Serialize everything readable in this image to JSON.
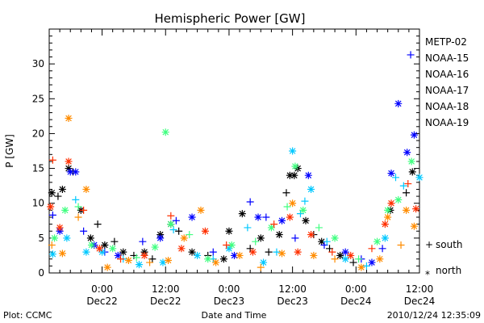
{
  "chart_data": {
    "type": "scatter",
    "title": "Hemispheric Power [GW]",
    "xlabel": "Date and Time",
    "ylabel": "P [GW]",
    "ylim": [
      0,
      35
    ],
    "yticks": [
      0,
      5,
      10,
      15,
      20,
      25,
      30
    ],
    "xlim": [
      "2010-12-21 14:00",
      "2010-12-24 12:00"
    ],
    "xticks": [
      {
        "x": "2010-12-22 00:00",
        "time": "0:00",
        "date": "Dec22"
      },
      {
        "x": "2010-12-22 12:00",
        "time": "12:00",
        "date": "Dec22"
      },
      {
        "x": "2010-12-23 00:00",
        "time": "0:00",
        "date": "Dec23"
      },
      {
        "x": "2010-12-23 12:00",
        "time": "12:00",
        "date": "Dec23"
      },
      {
        "x": "2010-12-24 00:00",
        "time": "0:00",
        "date": "Dec24"
      },
      {
        "x": "2010-12-24 12:00",
        "time": "12:00",
        "date": "Dec24"
      }
    ],
    "legend_position": "right",
    "marker_legend": [
      {
        "symbol": "+",
        "label": "south"
      },
      {
        "symbol": "*",
        "label": "north"
      }
    ],
    "footer_left": "Plot: CCMC",
    "footer_right": "2010/12/24 12:35:09",
    "series": [
      {
        "name": "METP-02",
        "color": "#000000",
        "points": [
          {
            "x": "2010-12-21 14:30",
            "y": 11.5,
            "m": "*"
          },
          {
            "x": "2010-12-21 15:40",
            "y": 11,
            "m": "+"
          },
          {
            "x": "2010-12-21 16:30",
            "y": 12,
            "m": "*"
          },
          {
            "x": "2010-12-21 17:40",
            "y": 15,
            "m": "*"
          },
          {
            "x": "2010-12-21 18:30",
            "y": 14.5,
            "m": "+"
          },
          {
            "x": "2010-12-21 20:00",
            "y": 9,
            "m": "*"
          },
          {
            "x": "2010-12-21 21:50",
            "y": 5,
            "m": "*"
          },
          {
            "x": "2010-12-21 23:10",
            "y": 7,
            "m": "+"
          },
          {
            "x": "2010-12-22 00:30",
            "y": 4,
            "m": "*"
          },
          {
            "x": "2010-12-22 02:20",
            "y": 4.5,
            "m": "+"
          },
          {
            "x": "2010-12-22 04:00",
            "y": 3,
            "m": "*"
          },
          {
            "x": "2010-12-22 06:00",
            "y": 2.5,
            "m": "+"
          },
          {
            "x": "2010-12-22 08:00",
            "y": 3,
            "m": "*"
          },
          {
            "x": "2010-12-22 09:30",
            "y": 2,
            "m": "+"
          },
          {
            "x": "2010-12-22 11:00",
            "y": 5.5,
            "m": "*"
          },
          {
            "x": "2010-12-22 13:00",
            "y": 7,
            "m": "*"
          },
          {
            "x": "2010-12-22 14:30",
            "y": 6,
            "m": "+"
          },
          {
            "x": "2010-12-22 17:00",
            "y": 3,
            "m": "*"
          },
          {
            "x": "2010-12-22 20:00",
            "y": 2.5,
            "m": "+"
          },
          {
            "x": "2010-12-22 23:00",
            "y": 2,
            "m": "*"
          },
          {
            "x": "2010-12-23 00:00",
            "y": 6,
            "m": "*"
          },
          {
            "x": "2010-12-23 02:30",
            "y": 8.5,
            "m": "*"
          },
          {
            "x": "2010-12-23 04:00",
            "y": 3.5,
            "m": "+"
          },
          {
            "x": "2010-12-23 06:00",
            "y": 5,
            "m": "*"
          },
          {
            "x": "2010-12-23 07:30",
            "y": 3,
            "m": "+"
          },
          {
            "x": "2010-12-23 09:30",
            "y": 5.5,
            "m": "*"
          },
          {
            "x": "2010-12-23 10:50",
            "y": 11.5,
            "m": "+"
          },
          {
            "x": "2010-12-23 11:30",
            "y": 14,
            "m": "*"
          },
          {
            "x": "2010-12-23 12:20",
            "y": 14,
            "m": "*"
          },
          {
            "x": "2010-12-23 13:00",
            "y": 15,
            "m": "*"
          },
          {
            "x": "2010-12-23 14:30",
            "y": 7.5,
            "m": "*"
          },
          {
            "x": "2010-12-23 16:00",
            "y": 5.5,
            "m": "+"
          },
          {
            "x": "2010-12-23 17:30",
            "y": 4.5,
            "m": "*"
          },
          {
            "x": "2010-12-23 19:00",
            "y": 3.5,
            "m": "+"
          },
          {
            "x": "2010-12-23 21:00",
            "y": 2.5,
            "m": "*"
          },
          {
            "x": "2010-12-23 23:30",
            "y": 1.5,
            "m": "+"
          },
          {
            "x": "2010-12-24 06:30",
            "y": 9,
            "m": "*"
          },
          {
            "x": "2010-12-24 09:30",
            "y": 11.5,
            "m": "+"
          },
          {
            "x": "2010-12-24 10:40",
            "y": 14.5,
            "m": "*"
          }
        ]
      },
      {
        "name": "NOAA-15",
        "color": "#0000ff",
        "points": [
          {
            "x": "2010-12-21 14:40",
            "y": 8.3,
            "m": "+"
          },
          {
            "x": "2010-12-21 16:00",
            "y": 6,
            "m": "*"
          },
          {
            "x": "2010-12-21 18:00",
            "y": 14.5,
            "m": "*"
          },
          {
            "x": "2010-12-21 19:00",
            "y": 14.5,
            "m": "*"
          },
          {
            "x": "2010-12-21 20:30",
            "y": 6,
            "m": "+"
          },
          {
            "x": "2010-12-21 22:30",
            "y": 4,
            "m": "*"
          },
          {
            "x": "2010-12-22 00:30",
            "y": 3,
            "m": "+"
          },
          {
            "x": "2010-12-22 03:00",
            "y": 2.5,
            "m": "*"
          },
          {
            "x": "2010-12-22 07:40",
            "y": 4.5,
            "m": "+"
          },
          {
            "x": "2010-12-22 11:00",
            "y": 5,
            "m": "*"
          },
          {
            "x": "2010-12-22 14:00",
            "y": 7.5,
            "m": "+"
          },
          {
            "x": "2010-12-22 17:00",
            "y": 8,
            "m": "*"
          },
          {
            "x": "2010-12-22 21:00",
            "y": 3,
            "m": "+"
          },
          {
            "x": "2010-12-23 01:00",
            "y": 2.5,
            "m": "*"
          },
          {
            "x": "2010-12-23 04:00",
            "y": 10.2,
            "m": "+"
          },
          {
            "x": "2010-12-23 05:30",
            "y": 8,
            "m": "*"
          },
          {
            "x": "2010-12-23 07:00",
            "y": 8,
            "m": "+"
          },
          {
            "x": "2010-12-23 10:00",
            "y": 7.5,
            "m": "*"
          },
          {
            "x": "2010-12-23 12:30",
            "y": 5,
            "m": "+"
          },
          {
            "x": "2010-12-23 15:00",
            "y": 14,
            "m": "*"
          },
          {
            "x": "2010-12-23 18:00",
            "y": 4,
            "m": "+"
          },
          {
            "x": "2010-12-23 22:00",
            "y": 3,
            "m": "*"
          },
          {
            "x": "2010-12-24 01:00",
            "y": 2,
            "m": "+"
          },
          {
            "x": "2010-12-24 03:00",
            "y": 1.5,
            "m": "*"
          },
          {
            "x": "2010-12-24 05:00",
            "y": 3.5,
            "m": "+"
          },
          {
            "x": "2010-12-24 06:40",
            "y": 14.3,
            "m": "*"
          },
          {
            "x": "2010-12-24 08:00",
            "y": 24.3,
            "m": "*"
          },
          {
            "x": "2010-12-24 09:40",
            "y": 17.3,
            "m": "*"
          },
          {
            "x": "2010-12-24 10:20",
            "y": 31.3,
            "m": "+"
          },
          {
            "x": "2010-12-24 11:00",
            "y": 19.8,
            "m": "*"
          }
        ]
      },
      {
        "name": "NOAA-16",
        "color": "#00c8ff",
        "points": [
          {
            "x": "2010-12-21 14:40",
            "y": 2.7,
            "m": "*"
          },
          {
            "x": "2010-12-21 17:20",
            "y": 5,
            "m": "*"
          },
          {
            "x": "2010-12-21 19:00",
            "y": 10.5,
            "m": "+"
          },
          {
            "x": "2010-12-21 21:00",
            "y": 3,
            "m": "*"
          },
          {
            "x": "2010-12-22 00:00",
            "y": 3,
            "m": "*"
          },
          {
            "x": "2010-12-22 04:00",
            "y": 2,
            "m": "+"
          },
          {
            "x": "2010-12-22 07:00",
            "y": 1.2,
            "m": "*"
          },
          {
            "x": "2010-12-22 11:30",
            "y": 1.5,
            "m": "*"
          },
          {
            "x": "2010-12-22 13:30",
            "y": 6.2,
            "m": "+"
          },
          {
            "x": "2010-12-22 18:00",
            "y": 2.5,
            "m": "*"
          },
          {
            "x": "2010-12-22 21:00",
            "y": 2,
            "m": "+"
          },
          {
            "x": "2010-12-23 00:00",
            "y": 3.5,
            "m": "*"
          },
          {
            "x": "2010-12-23 03:30",
            "y": 6.5,
            "m": "+"
          },
          {
            "x": "2010-12-23 06:30",
            "y": 1.5,
            "m": "*"
          },
          {
            "x": "2010-12-23 09:00",
            "y": 3,
            "m": "+"
          },
          {
            "x": "2010-12-23 12:00",
            "y": 17.5,
            "m": "*"
          },
          {
            "x": "2010-12-23 13:30",
            "y": 8.5,
            "m": "+"
          },
          {
            "x": "2010-12-23 14:20",
            "y": 10.3,
            "m": "+"
          },
          {
            "x": "2010-12-23 15:30",
            "y": 12,
            "m": "*"
          },
          {
            "x": "2010-12-23 18:30",
            "y": 4.5,
            "m": "+"
          },
          {
            "x": "2010-12-23 22:00",
            "y": 2,
            "m": "*"
          },
          {
            "x": "2010-12-24 02:00",
            "y": 1,
            "m": "+"
          },
          {
            "x": "2010-12-24 05:30",
            "y": 5,
            "m": "*"
          },
          {
            "x": "2010-12-24 07:30",
            "y": 13.7,
            "m": "+"
          },
          {
            "x": "2010-12-24 09:00",
            "y": 12.5,
            "m": "+"
          },
          {
            "x": "2010-12-24 12:00",
            "y": 13.7,
            "m": "*"
          }
        ]
      },
      {
        "name": "NOAA-17",
        "color": "#40ff80",
        "points": [
          {
            "x": "2010-12-21 15:00",
            "y": 5,
            "m": "*"
          },
          {
            "x": "2010-12-21 17:00",
            "y": 9,
            "m": "*"
          },
          {
            "x": "2010-12-21 19:30",
            "y": 9.5,
            "m": "+"
          },
          {
            "x": "2010-12-21 22:00",
            "y": 4,
            "m": "*"
          },
          {
            "x": "2010-12-22 02:00",
            "y": 3.5,
            "m": "*"
          },
          {
            "x": "2010-12-22 06:30",
            "y": 2.2,
            "m": "+"
          },
          {
            "x": "2010-12-22 10:00",
            "y": 3.7,
            "m": "*"
          },
          {
            "x": "2010-12-22 12:00",
            "y": 20.2,
            "m": "*"
          },
          {
            "x": "2010-12-22 13:00",
            "y": 7,
            "m": "*"
          },
          {
            "x": "2010-12-22 16:30",
            "y": 5.5,
            "m": "+"
          },
          {
            "x": "2010-12-22 20:00",
            "y": 2,
            "m": "*"
          },
          {
            "x": "2010-12-23 00:30",
            "y": 4,
            "m": "*"
          },
          {
            "x": "2010-12-23 05:00",
            "y": 4.5,
            "m": "+"
          },
          {
            "x": "2010-12-23 08:00",
            "y": 6.5,
            "m": "*"
          },
          {
            "x": "2010-12-23 11:00",
            "y": 9.5,
            "m": "+"
          },
          {
            "x": "2010-12-23 12:30",
            "y": 15.3,
            "m": "*"
          },
          {
            "x": "2010-12-23 14:00",
            "y": 9,
            "m": "*"
          },
          {
            "x": "2010-12-23 17:00",
            "y": 6.5,
            "m": "+"
          },
          {
            "x": "2010-12-23 20:00",
            "y": 5,
            "m": "*"
          },
          {
            "x": "2010-12-24 00:30",
            "y": 2,
            "m": "+"
          },
          {
            "x": "2010-12-24 04:00",
            "y": 4.5,
            "m": "*"
          },
          {
            "x": "2010-12-24 06:00",
            "y": 9,
            "m": "*"
          },
          {
            "x": "2010-12-24 08:00",
            "y": 10.5,
            "m": "*"
          },
          {
            "x": "2010-12-24 10:30",
            "y": 16,
            "m": "*"
          }
        ]
      },
      {
        "name": "NOAA-18",
        "color": "#ff8c00",
        "points": [
          {
            "x": "2010-12-21 14:30",
            "y": 4,
            "m": "+"
          },
          {
            "x": "2010-12-21 16:30",
            "y": 2.8,
            "m": "*"
          },
          {
            "x": "2010-12-21 17:40",
            "y": 22.2,
            "m": "*"
          },
          {
            "x": "2010-12-21 19:30",
            "y": 8,
            "m": "+"
          },
          {
            "x": "2010-12-21 21:00",
            "y": 12,
            "m": "*"
          },
          {
            "x": "2010-12-22 01:00",
            "y": 0.8,
            "m": "*"
          },
          {
            "x": "2010-12-22 05:00",
            "y": 1.8,
            "m": "*"
          },
          {
            "x": "2010-12-22 09:00",
            "y": 1.5,
            "m": "+"
          },
          {
            "x": "2010-12-22 12:30",
            "y": 1.8,
            "m": "*"
          },
          {
            "x": "2010-12-22 15:30",
            "y": 5,
            "m": "*"
          },
          {
            "x": "2010-12-22 18:40",
            "y": 9,
            "m": "*"
          },
          {
            "x": "2010-12-22 21:30",
            "y": 1.5,
            "m": "*"
          },
          {
            "x": "2010-12-23 02:00",
            "y": 2.5,
            "m": "*"
          },
          {
            "x": "2010-12-23 06:00",
            "y": 0.8,
            "m": "+"
          },
          {
            "x": "2010-12-23 10:00",
            "y": 2.8,
            "m": "*"
          },
          {
            "x": "2010-12-23 12:00",
            "y": 10,
            "m": "*"
          },
          {
            "x": "2010-12-23 16:00",
            "y": 2.5,
            "m": "*"
          },
          {
            "x": "2010-12-23 20:00",
            "y": 2,
            "m": "+"
          },
          {
            "x": "2010-12-24 01:00",
            "y": 0.8,
            "m": "*"
          },
          {
            "x": "2010-12-24 04:30",
            "y": 2,
            "m": "*"
          },
          {
            "x": "2010-12-24 06:00",
            "y": 8,
            "m": "*"
          },
          {
            "x": "2010-12-24 08:30",
            "y": 4,
            "m": "+"
          },
          {
            "x": "2010-12-24 09:30",
            "y": 9,
            "m": "*"
          },
          {
            "x": "2010-12-24 11:00",
            "y": 6.7,
            "m": "*"
          }
        ]
      },
      {
        "name": "NOAA-19",
        "color": "#ff3000",
        "points": [
          {
            "x": "2010-12-21 14:15",
            "y": 9.5,
            "m": "*"
          },
          {
            "x": "2010-12-21 14:40",
            "y": 16.2,
            "m": "+"
          },
          {
            "x": "2010-12-21 16:00",
            "y": 6.5,
            "m": "*"
          },
          {
            "x": "2010-12-21 17:40",
            "y": 16,
            "m": "*"
          },
          {
            "x": "2010-12-21 20:30",
            "y": 9,
            "m": "+"
          },
          {
            "x": "2010-12-21 23:30",
            "y": 3.5,
            "m": "*"
          },
          {
            "x": "2010-12-22 03:30",
            "y": 2,
            "m": "+"
          },
          {
            "x": "2010-12-22 08:00",
            "y": 2.5,
            "m": "*"
          },
          {
            "x": "2010-12-22 13:00",
            "y": 8.2,
            "m": "+"
          },
          {
            "x": "2010-12-22 15:00",
            "y": 3.5,
            "m": "*"
          },
          {
            "x": "2010-12-22 19:30",
            "y": 6,
            "m": "*"
          },
          {
            "x": "2010-12-22 23:30",
            "y": 4,
            "m": "+"
          },
          {
            "x": "2010-12-23 04:30",
            "y": 3,
            "m": "*"
          },
          {
            "x": "2010-12-23 08:30",
            "y": 7,
            "m": "+"
          },
          {
            "x": "2010-12-23 11:30",
            "y": 8,
            "m": "*"
          },
          {
            "x": "2010-12-23 13:00",
            "y": 3,
            "m": "*"
          },
          {
            "x": "2010-12-23 15:30",
            "y": 5.5,
            "m": "*"
          },
          {
            "x": "2010-12-23 19:30",
            "y": 3,
            "m": "+"
          },
          {
            "x": "2010-12-23 23:00",
            "y": 2.5,
            "m": "*"
          },
          {
            "x": "2010-12-24 03:00",
            "y": 3.5,
            "m": "+"
          },
          {
            "x": "2010-12-24 05:30",
            "y": 7,
            "m": "*"
          },
          {
            "x": "2010-12-24 06:40",
            "y": 10,
            "m": "*"
          },
          {
            "x": "2010-12-24 09:50",
            "y": 12.8,
            "m": "+"
          },
          {
            "x": "2010-12-24 11:20",
            "y": 9.2,
            "m": "*"
          }
        ]
      }
    ]
  }
}
